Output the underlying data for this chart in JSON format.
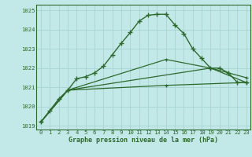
{
  "title": "Graphe pression niveau de la mer (hPa)",
  "background_color": "#c3e8e8",
  "grid_color": "#a8d4d4",
  "line_color": "#2d6a2d",
  "ylim": [
    1018.8,
    1025.3
  ],
  "yticks": [
    1019,
    1020,
    1021,
    1022,
    1023,
    1024,
    1025
  ],
  "xticks": [
    0,
    1,
    2,
    3,
    4,
    5,
    6,
    7,
    8,
    9,
    10,
    11,
    12,
    13,
    14,
    15,
    16,
    17,
    18,
    19,
    20,
    21,
    22,
    23
  ],
  "main_x": [
    0,
    1,
    2,
    3,
    4,
    5,
    6,
    7,
    8,
    9,
    10,
    11,
    12,
    13,
    14,
    15,
    16,
    17,
    18,
    19,
    20,
    21,
    22,
    23
  ],
  "main_y": [
    1019.2,
    1019.8,
    1020.4,
    1020.85,
    1021.45,
    1021.55,
    1021.75,
    1022.1,
    1022.7,
    1023.3,
    1023.85,
    1024.45,
    1024.75,
    1024.8,
    1024.8,
    1024.25,
    1023.8,
    1023.0,
    1022.5,
    1022.0,
    1022.0,
    1021.75,
    1021.25,
    1021.25
  ],
  "line2_x": [
    0,
    3,
    14,
    19,
    23
  ],
  "line2_y": [
    1019.2,
    1020.85,
    1022.45,
    1022.0,
    1021.25
  ],
  "line3_x": [
    0,
    3,
    19,
    23
  ],
  "line3_y": [
    1019.2,
    1020.85,
    1022.0,
    1021.5
  ],
  "line4_x": [
    0,
    3,
    14,
    23
  ],
  "line4_y": [
    1019.2,
    1020.85,
    1021.1,
    1021.25
  ]
}
